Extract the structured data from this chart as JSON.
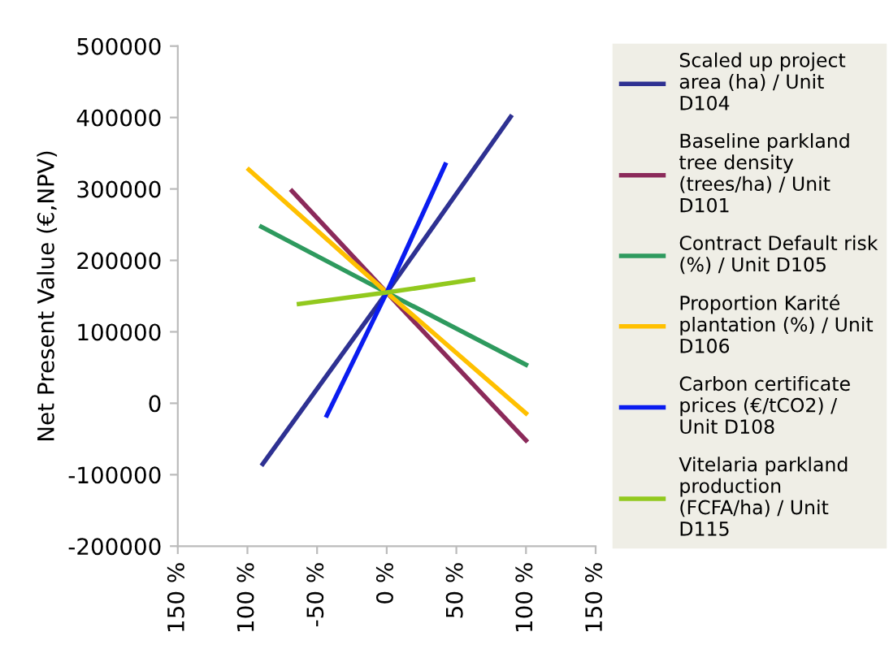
{
  "chart_data": {
    "type": "line",
    "ylabel": "Net Present Value (€,NPV)",
    "xlim": [
      -150,
      150
    ],
    "xticks": [
      {
        "value": -150,
        "label": "150 %"
      },
      {
        "value": -100,
        "label": "100 %"
      },
      {
        "value": -50,
        "label": "-50 %"
      },
      {
        "value": 0,
        "label": "0 %"
      },
      {
        "value": 50,
        "label": "50 %"
      },
      {
        "value": 100,
        "label": "100 %"
      },
      {
        "value": 150,
        "label": "150 %"
      }
    ],
    "ylim": [
      -200000,
      500000
    ],
    "yticks": [
      -200000,
      -100000,
      0,
      100000,
      200000,
      300000,
      400000,
      500000
    ],
    "grid": false,
    "legend": "right",
    "marker": "none",
    "line_style": "solid",
    "series": [
      {
        "name": "Scaled up project area (ha) / Unit D104",
        "color": "#2e3192",
        "x": [
          -89,
          0,
          89
        ],
        "values": [
          -85000,
          155000,
          401000
        ]
      },
      {
        "name": "Baseline parkland tree density (trees/ha) / Unit D101",
        "color": "#8b2a5a",
        "x": [
          -68,
          0,
          100
        ],
        "values": [
          297000,
          155000,
          -52000
        ]
      },
      {
        "name": "Contract Default risk (%) / Unit D105",
        "color": "#2e9a5e",
        "x": [
          -90,
          0,
          100
        ],
        "values": [
          247000,
          155000,
          54000
        ]
      },
      {
        "name": "Proportion Karité plantation (%) / Unit D106",
        "color": "#ffc000",
        "x": [
          -99,
          0,
          100
        ],
        "values": [
          327000,
          155000,
          -14000
        ]
      },
      {
        "name": "Carbon certificate prices (€/tCO2) / Unit D108",
        "color": "#0a1cf0",
        "x": [
          -43,
          0,
          42
        ],
        "values": [
          -17000,
          155000,
          334000
        ]
      },
      {
        "name": "Vitelaria parkland production  (FCFA/ha) / Unit D115",
        "color": "#92c91e",
        "x": [
          -63,
          0,
          62
        ],
        "values": [
          139000,
          155000,
          173000
        ]
      }
    ]
  }
}
